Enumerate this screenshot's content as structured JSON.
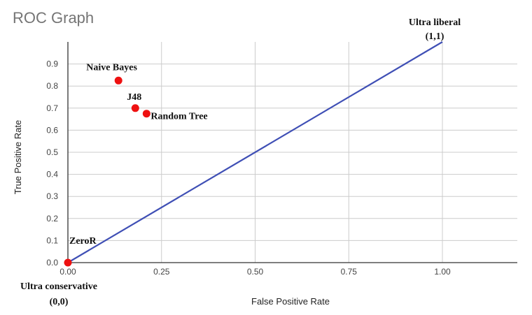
{
  "chart_data": {
    "type": "scatter",
    "title": "ROC Graph",
    "xlabel": "False Positive Rate",
    "ylabel": "True Positive Rate",
    "xlim": [
      0,
      1.2
    ],
    "ylim": [
      0,
      1.0
    ],
    "x_ticks": [
      0,
      0.25,
      0.5,
      0.75,
      1.0
    ],
    "x_tick_labels": [
      "0.00",
      "0.25",
      "0.50",
      "0.75",
      "1.00"
    ],
    "y_ticks": [
      0,
      0.1,
      0.2,
      0.3,
      0.4,
      0.5,
      0.6,
      0.7,
      0.8,
      0.9
    ],
    "y_tick_labels": [
      "0.0",
      "0.1",
      "0.2",
      "0.3",
      "0.4",
      "0.5",
      "0.6",
      "0.7",
      "0.8",
      "0.9"
    ],
    "grid": true,
    "colors": {
      "points": "#ee1111",
      "line": "#3f4fb5",
      "grid": "#cccccc"
    },
    "line": {
      "x": [
        0,
        1.0
      ],
      "y": [
        0,
        1.0
      ]
    },
    "points": [
      {
        "label": "Naive Bayes",
        "x": 0.135,
        "y": 0.825
      },
      {
        "label": "J48",
        "x": 0.18,
        "y": 0.7
      },
      {
        "label": "Random Tree",
        "x": 0.21,
        "y": 0.675
      },
      {
        "label": "ZeroR",
        "x": 0.0,
        "y": 0.0
      }
    ],
    "annotations": [
      {
        "lines": [
          "Ultra liberal",
          "(1,1)"
        ]
      },
      {
        "lines": [
          "Ultra conservative",
          "(0,0)"
        ]
      }
    ]
  }
}
